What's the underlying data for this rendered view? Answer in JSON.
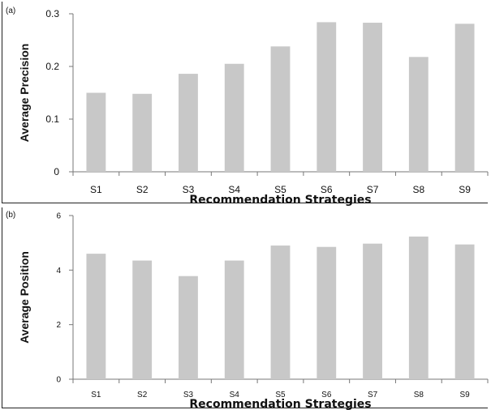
{
  "chart_data": [
    {
      "panel_label": "(a)",
      "type": "bar",
      "categories": [
        "S1",
        "S2",
        "S3",
        "S4",
        "S5",
        "S6",
        "S7",
        "S8",
        "S9"
      ],
      "values": [
        0.15,
        0.148,
        0.186,
        0.205,
        0.238,
        0.284,
        0.283,
        0.218,
        0.281
      ],
      "title": "",
      "xlabel": "Recommendation Strategies",
      "ylabel": "Average Precision",
      "ylim": [
        0,
        0.3
      ],
      "yticks": [
        "0",
        "0.1",
        "0.2",
        "0.3"
      ],
      "grid": false,
      "bar_color": "#c8c8c8"
    },
    {
      "panel_label": "(b)",
      "type": "bar",
      "categories": [
        "S1",
        "S2",
        "S3",
        "S4",
        "S5",
        "S6",
        "S7",
        "S8",
        "S9"
      ],
      "values": [
        4.6,
        4.35,
        3.78,
        4.35,
        4.9,
        4.85,
        4.97,
        5.23,
        4.94
      ],
      "title": "",
      "xlabel": "Recommendation Strategies",
      "ylabel": "Average Position",
      "ylim": [
        0,
        6
      ],
      "yticks": [
        "0",
        "2",
        "4",
        "6"
      ],
      "grid": false,
      "bar_color": "#c8c8c8"
    }
  ]
}
